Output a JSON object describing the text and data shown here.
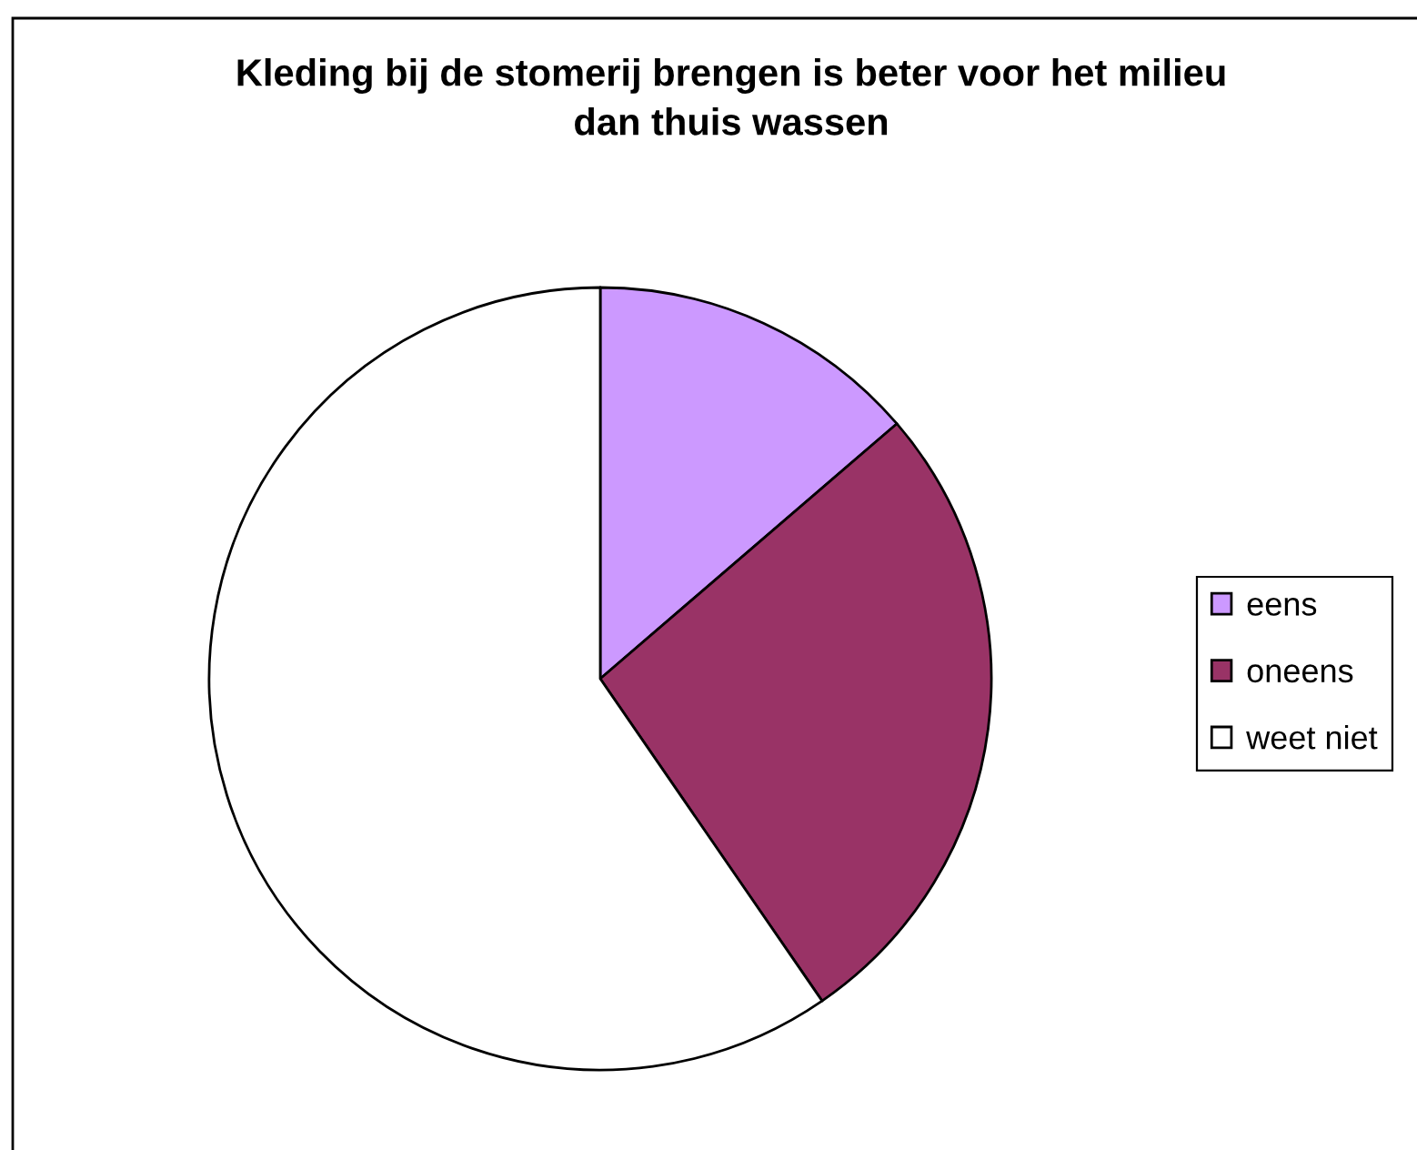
{
  "chart_data": {
    "type": "pie",
    "title": "Kleding bij de stomerij brengen is beter voor het milieu\ndan thuis wassen",
    "categories": [
      "eens",
      "oneens",
      "weet niet"
    ],
    "values": [
      13.7,
      26.7,
      59.6
    ],
    "colors": [
      "#cc99ff",
      "#993366",
      "#ffffff"
    ],
    "legend": "right"
  }
}
